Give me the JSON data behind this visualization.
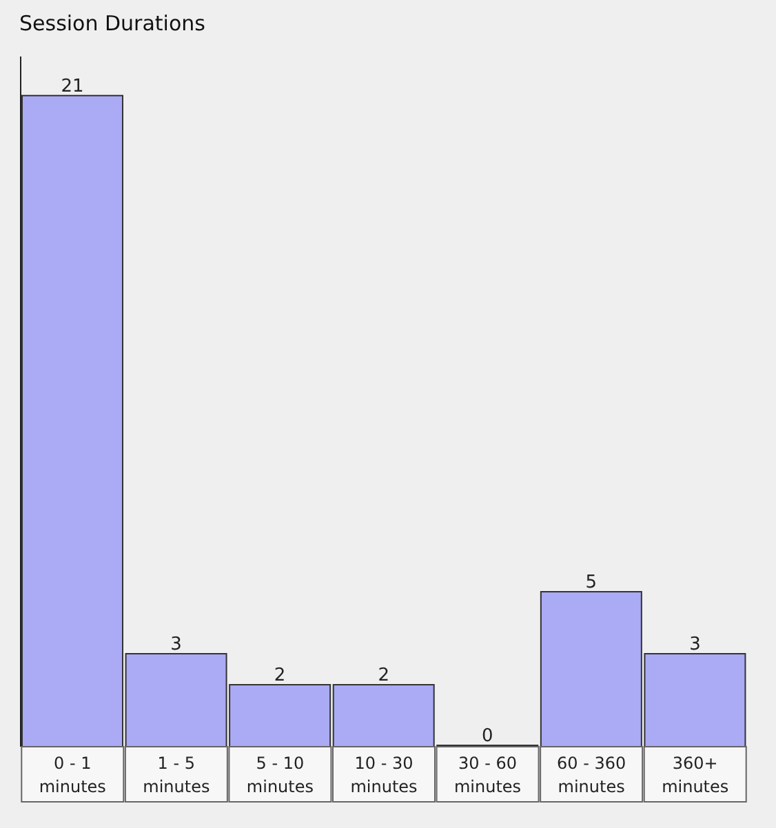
{
  "chart_data": {
    "type": "bar",
    "title": "Session Durations",
    "categories": [
      "0 - 1 minutes",
      "1 - 5 minutes",
      "5 - 10 minutes",
      "10 - 30 minutes",
      "30 - 60 minutes",
      "60 - 360 minutes",
      "360+ minutes"
    ],
    "values": [
      21,
      3,
      2,
      2,
      0,
      5,
      3
    ],
    "color": "#aaaaf5",
    "data_labels": true,
    "grid": false
  }
}
